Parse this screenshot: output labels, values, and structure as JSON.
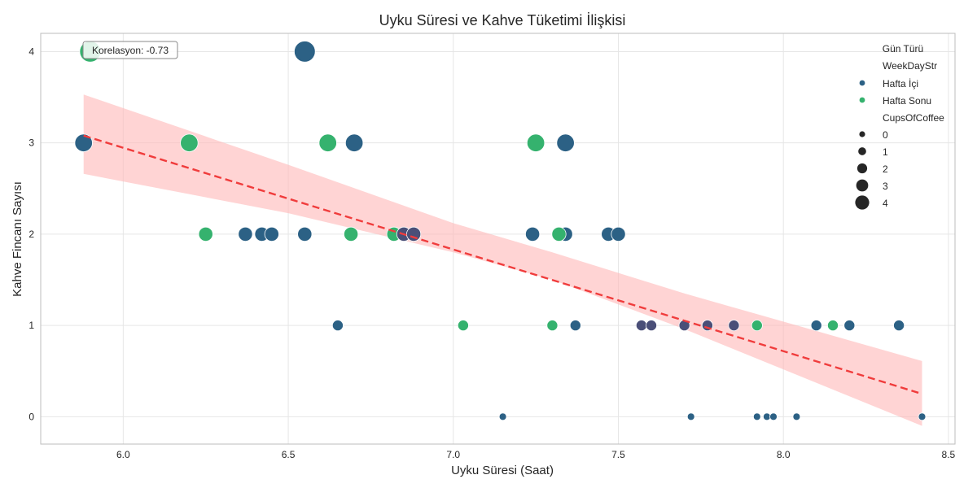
{
  "chart_data": {
    "type": "scatter",
    "title": "Uyku Süresi ve Kahve Tüketimi İlişkisi",
    "xlabel": "Uyku Süresi (Saat)",
    "ylabel": "Kahve Fincanı Sayısı",
    "xlim": [
      5.75,
      8.52
    ],
    "ylim": [
      -0.3,
      4.2
    ],
    "xticks": [
      6.0,
      6.5,
      7.0,
      7.5,
      8.0,
      8.5
    ],
    "xtick_labels": [
      "6.0",
      "6.5",
      "7.0",
      "7.5",
      "8.0",
      "8.5"
    ],
    "yticks": [
      0,
      1,
      2,
      3,
      4
    ],
    "ytick_labels": [
      "0",
      "1",
      "2",
      "3",
      "4"
    ],
    "grid": true,
    "annotation": "Korelasyon: -0.73",
    "colors": {
      "weekday": "#2c6185",
      "weekend": "#35b26e",
      "overlap": "#4a4f78",
      "trend": "#f03c3c",
      "band": "#ffb8b8"
    },
    "trend": {
      "x0": 5.88,
      "y0": 3.08,
      "x1": 8.42,
      "y1": 0.25
    },
    "band": [
      {
        "x": 5.88,
        "lo": 2.66,
        "hi": 3.53
      },
      {
        "x": 6.5,
        "lo": 2.23,
        "hi": 2.76
      },
      {
        "x": 7.0,
        "lo": 1.8,
        "hi": 2.12
      },
      {
        "x": 7.3,
        "lo": 1.5,
        "hi": 1.8
      },
      {
        "x": 7.7,
        "lo": 0.96,
        "hi": 1.35
      },
      {
        "x": 8.42,
        "lo": -0.1,
        "hi": 0.61
      }
    ],
    "series": [
      {
        "name": "Hafta İçi",
        "key": "weekday",
        "points": [
          [
            5.88,
            3
          ],
          [
            6.55,
            4
          ],
          [
            6.7,
            3
          ],
          [
            7.34,
            3
          ],
          [
            6.37,
            2
          ],
          [
            6.42,
            2
          ],
          [
            6.45,
            2
          ],
          [
            6.55,
            2
          ],
          [
            7.24,
            2
          ],
          [
            7.34,
            2
          ],
          [
            7.47,
            2
          ],
          [
            7.5,
            2
          ],
          [
            6.65,
            1
          ],
          [
            7.37,
            1
          ],
          [
            8.1,
            1
          ],
          [
            8.2,
            1
          ],
          [
            8.35,
            1
          ],
          [
            7.15,
            0
          ],
          [
            7.72,
            0
          ],
          [
            7.92,
            0
          ],
          [
            7.95,
            0
          ],
          [
            7.97,
            0
          ],
          [
            8.04,
            0
          ],
          [
            8.42,
            0
          ]
        ]
      },
      {
        "name": "Hafta Sonu",
        "key": "weekend",
        "points": [
          [
            5.9,
            4
          ],
          [
            6.2,
            3
          ],
          [
            6.62,
            3
          ],
          [
            7.25,
            3
          ],
          [
            6.25,
            2
          ],
          [
            6.69,
            2
          ],
          [
            6.82,
            2
          ],
          [
            7.32,
            2
          ],
          [
            7.03,
            1
          ],
          [
            7.3,
            1
          ],
          [
            7.92,
            1
          ],
          [
            8.15,
            1
          ]
        ]
      },
      {
        "name": "Hafta İçi / Hafta Sonu",
        "key": "overlap",
        "points": [
          [
            6.85,
            2
          ],
          [
            6.88,
            2
          ],
          [
            7.57,
            1
          ],
          [
            7.6,
            1
          ],
          [
            7.7,
            1
          ],
          [
            7.77,
            1
          ],
          [
            7.85,
            1
          ]
        ]
      }
    ],
    "legend": {
      "position": "top-right",
      "title": "Gün Türü",
      "hue_title": "WeekDayStr",
      "hue_items": [
        {
          "label": "Hafta İçi",
          "key": "weekday"
        },
        {
          "label": "Hafta Sonu",
          "key": "weekend"
        }
      ],
      "size_title": "CupsOfCoffee",
      "size_items": [
        {
          "label": "0",
          "cups": 0
        },
        {
          "label": "1",
          "cups": 1
        },
        {
          "label": "2",
          "cups": 2
        },
        {
          "label": "3",
          "cups": 3
        },
        {
          "label": "4",
          "cups": 4
        }
      ]
    }
  }
}
